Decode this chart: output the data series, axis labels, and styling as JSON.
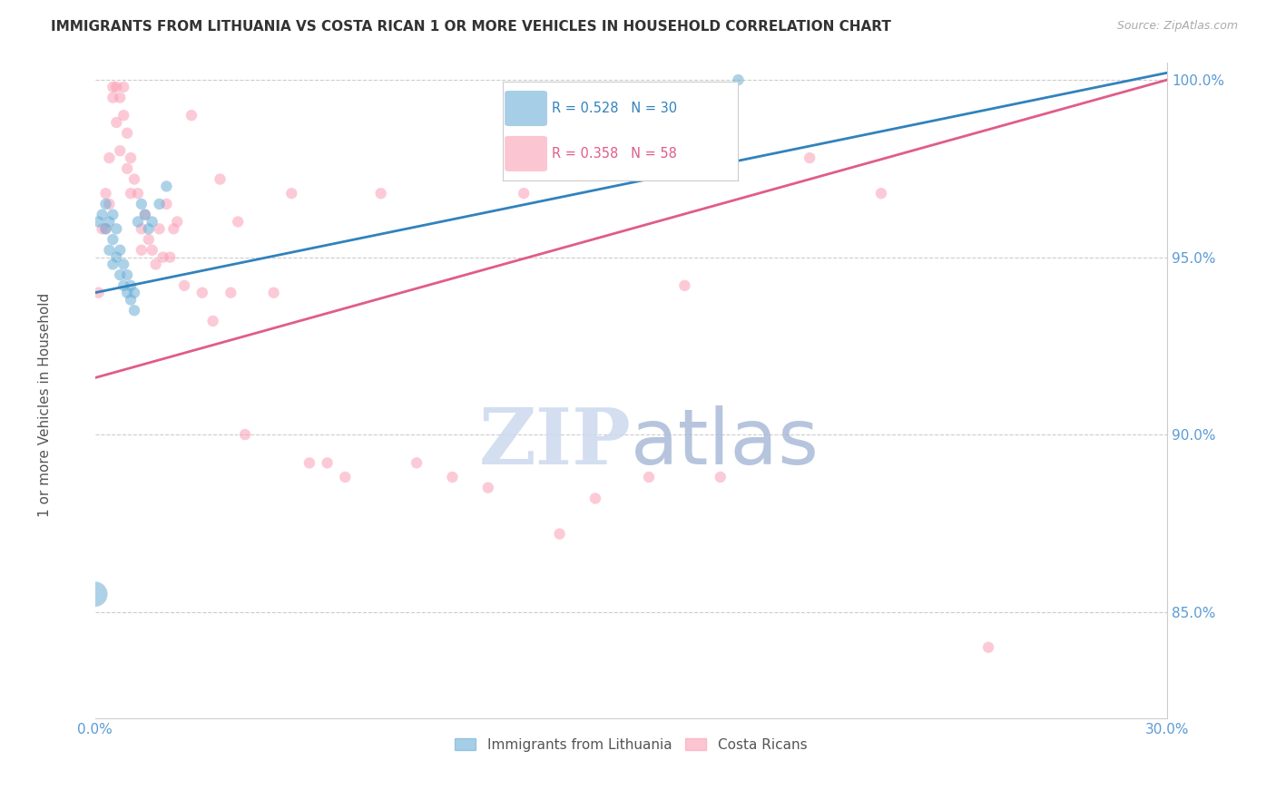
{
  "title": "IMMIGRANTS FROM LITHUANIA VS COSTA RICAN 1 OR MORE VEHICLES IN HOUSEHOLD CORRELATION CHART",
  "source": "Source: ZipAtlas.com",
  "ylabel": "1 or more Vehicles in Household",
  "xlim": [
    0.0,
    0.3
  ],
  "ylim": [
    0.82,
    1.005
  ],
  "yticks": [
    0.85,
    0.9,
    0.95,
    1.0
  ],
  "ytick_labels": [
    "85.0%",
    "90.0%",
    "95.0%",
    "100.0%"
  ],
  "xticks": [
    0.0,
    0.05,
    0.1,
    0.15,
    0.2,
    0.25,
    0.3
  ],
  "xtick_labels": [
    "0.0%",
    "",
    "",
    "",
    "",
    "",
    "30.0%"
  ],
  "blue_R": 0.528,
  "blue_N": 30,
  "pink_R": 0.358,
  "pink_N": 58,
  "blue_color": "#6baed6",
  "pink_color": "#fa9fb5",
  "blue_line_color": "#3182bd",
  "pink_line_color": "#e05c8a",
  "legend_label_blue": "Immigrants from Lithuania",
  "legend_label_pink": "Costa Ricans",
  "blue_points_x": [
    0.0,
    0.001,
    0.002,
    0.003,
    0.003,
    0.004,
    0.004,
    0.005,
    0.005,
    0.005,
    0.006,
    0.006,
    0.007,
    0.007,
    0.008,
    0.008,
    0.009,
    0.009,
    0.01,
    0.01,
    0.011,
    0.011,
    0.012,
    0.013,
    0.014,
    0.015,
    0.016,
    0.018,
    0.02,
    0.18
  ],
  "blue_points_y": [
    0.855,
    0.96,
    0.962,
    0.958,
    0.965,
    0.952,
    0.96,
    0.948,
    0.955,
    0.962,
    0.95,
    0.958,
    0.945,
    0.952,
    0.942,
    0.948,
    0.94,
    0.945,
    0.938,
    0.942,
    0.935,
    0.94,
    0.96,
    0.965,
    0.962,
    0.958,
    0.96,
    0.965,
    0.97,
    1.0
  ],
  "blue_sizes": [
    400,
    80,
    80,
    80,
    80,
    80,
    80,
    80,
    80,
    80,
    80,
    80,
    80,
    80,
    80,
    80,
    80,
    80,
    80,
    80,
    80,
    80,
    80,
    80,
    80,
    80,
    80,
    80,
    80,
    80
  ],
  "pink_points_x": [
    0.001,
    0.002,
    0.003,
    0.003,
    0.004,
    0.004,
    0.005,
    0.005,
    0.006,
    0.006,
    0.007,
    0.007,
    0.008,
    0.008,
    0.009,
    0.009,
    0.01,
    0.01,
    0.011,
    0.012,
    0.013,
    0.013,
    0.014,
    0.015,
    0.016,
    0.017,
    0.018,
    0.019,
    0.02,
    0.021,
    0.022,
    0.023,
    0.025,
    0.027,
    0.03,
    0.033,
    0.035,
    0.038,
    0.04,
    0.042,
    0.05,
    0.055,
    0.06,
    0.065,
    0.07,
    0.08,
    0.09,
    0.1,
    0.11,
    0.12,
    0.13,
    0.14,
    0.155,
    0.165,
    0.175,
    0.2,
    0.22,
    0.25
  ],
  "pink_points_y": [
    0.94,
    0.958,
    0.968,
    0.958,
    0.978,
    0.965,
    0.995,
    0.998,
    0.998,
    0.988,
    0.995,
    0.98,
    0.998,
    0.99,
    0.985,
    0.975,
    0.978,
    0.968,
    0.972,
    0.968,
    0.958,
    0.952,
    0.962,
    0.955,
    0.952,
    0.948,
    0.958,
    0.95,
    0.965,
    0.95,
    0.958,
    0.96,
    0.942,
    0.99,
    0.94,
    0.932,
    0.972,
    0.94,
    0.96,
    0.9,
    0.94,
    0.968,
    0.892,
    0.892,
    0.888,
    0.968,
    0.892,
    0.888,
    0.885,
    0.968,
    0.872,
    0.882,
    0.888,
    0.942,
    0.888,
    0.978,
    0.968,
    0.84
  ],
  "pink_sizes": [
    80,
    80,
    80,
    80,
    80,
    80,
    80,
    80,
    80,
    80,
    80,
    80,
    80,
    80,
    80,
    80,
    80,
    80,
    80,
    80,
    80,
    80,
    80,
    80,
    80,
    80,
    80,
    80,
    80,
    80,
    80,
    80,
    80,
    80,
    80,
    80,
    80,
    80,
    80,
    80,
    80,
    80,
    80,
    80,
    80,
    80,
    80,
    80,
    80,
    80,
    80,
    80,
    80,
    80,
    80,
    80,
    80,
    80
  ],
  "background_color": "#ffffff",
  "grid_color": "#cccccc",
  "title_fontsize": 11,
  "tick_color": "#5b9bd5"
}
